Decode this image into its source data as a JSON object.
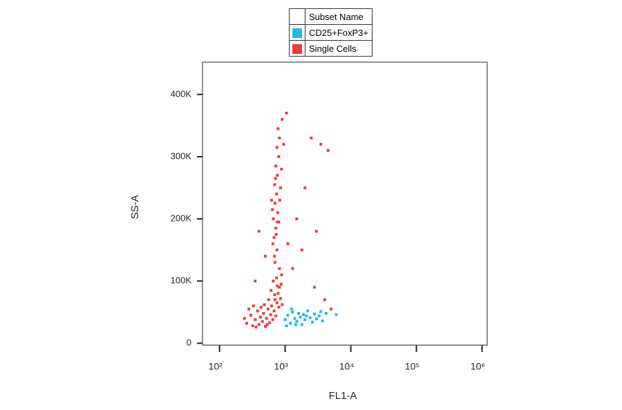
{
  "chart_data": {
    "type": "scatter",
    "legend_title": "Subset Name",
    "x_label": "FL1-A",
    "y_label": "SS-A",
    "x_scale": "log",
    "xlim": [
      55,
      1200000
    ],
    "ylim": [
      -3000,
      452000
    ],
    "xticks": [
      {
        "value": 100,
        "label": "10²"
      },
      {
        "value": 1000,
        "label": "10³"
      },
      {
        "value": 10000,
        "label": "10⁴"
      },
      {
        "value": 100000,
        "label": "10⁵"
      },
      {
        "value": 1000000,
        "label": "10⁶"
      }
    ],
    "yticks": [
      0,
      {
        "value": 100000,
        "label": "100K"
      },
      {
        "value": 200000,
        "label": "200K"
      },
      {
        "value": 300000,
        "label": "300K"
      },
      {
        "value": 400000,
        "label": "400K"
      }
    ],
    "series": [
      {
        "name": "CD25+FoxP3+",
        "color": "#29b6e6",
        "x": [
          1000,
          1100,
          1200,
          1300,
          1400,
          1500,
          1600,
          1700,
          1800,
          1900,
          2000,
          2200,
          2400,
          2600,
          2800,
          3000,
          3300,
          3700,
          4200,
          1050,
          1250,
          1450,
          2100,
          3500,
          6000
        ],
        "values": [
          38000,
          45000,
          32000,
          50000,
          40000,
          35000,
          48000,
          42000,
          30000,
          46000,
          38000,
          52000,
          41000,
          34000,
          47000,
          39000,
          44000,
          36000,
          48000,
          28000,
          55000,
          30000,
          44000,
          51000,
          46000
        ]
      },
      {
        "name": "Single Cells",
        "color": "#f23a3a",
        "x": [
          260,
          300,
          320,
          350,
          380,
          400,
          420,
          450,
          470,
          500,
          520,
          550,
          580,
          600,
          620,
          650,
          680,
          700,
          720,
          750,
          780,
          800,
          820,
          850,
          870,
          900,
          240,
          280,
          330,
          360,
          430,
          480,
          530,
          560,
          610,
          660,
          690,
          740,
          760,
          880,
          700,
          750,
          680,
          720,
          660,
          770,
          700,
          740,
          690,
          760,
          720,
          800,
          750,
          820,
          780,
          900,
          650,
          800,
          640,
          730,
          850,
          620,
          880,
          690,
          820,
          760,
          710,
          830,
          950,
          1050,
          2500,
          3500,
          4500,
          2000,
          1500,
          3000,
          1800,
          400,
          350,
          1300,
          2800,
          4000,
          1100,
          500,
          5000
        ],
        "values": [
          32000,
          45000,
          28000,
          38000,
          52000,
          30000,
          42000,
          35000,
          48000,
          27000,
          40000,
          55000,
          33000,
          46000,
          60000,
          38000,
          52000,
          70000,
          44000,
          65000,
          80000,
          58000,
          90000,
          72000,
          95000,
          62000,
          40000,
          55000,
          60000,
          26000,
          58000,
          62000,
          30000,
          70000,
          85000,
          100000,
          78000,
          105000,
          92000,
          110000,
          130000,
          150000,
          170000,
          185000,
          200000,
          210000,
          225000,
          240000,
          255000,
          270000,
          285000,
          300000,
          315000,
          330000,
          345000,
          360000,
          160000,
          195000,
          215000,
          175000,
          250000,
          230000,
          280000,
          140000,
          120000,
          195000,
          265000,
          230000,
          320000,
          370000,
          330000,
          320000,
          310000,
          250000,
          200000,
          180000,
          150000,
          180000,
          100000,
          120000,
          90000,
          70000,
          160000,
          140000,
          55000
        ]
      }
    ]
  }
}
